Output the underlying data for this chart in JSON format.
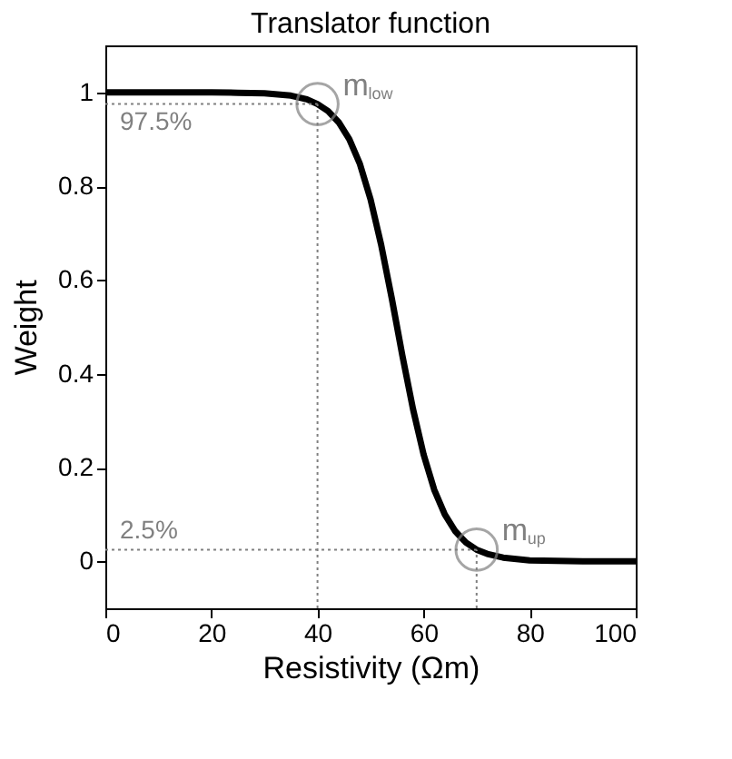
{
  "chart_data": {
    "type": "line",
    "title": "Translator function",
    "xlabel": "Resistivity (Ωm)",
    "ylabel": "Weight",
    "x": [
      0,
      10,
      20,
      25,
      30,
      35,
      38,
      40,
      42,
      44,
      46,
      48,
      50,
      52,
      54,
      55,
      56,
      58,
      60,
      62,
      64,
      66,
      68,
      70,
      72,
      75,
      80,
      90,
      100
    ],
    "series": [
      {
        "color": "#000000",
        "values": [
          1.0,
          1.0,
          1.0,
          0.999,
          0.998,
          0.993,
          0.985,
          0.975,
          0.96,
          0.936,
          0.9,
          0.847,
          0.772,
          0.675,
          0.561,
          0.5,
          0.439,
          0.325,
          0.228,
          0.153,
          0.1,
          0.064,
          0.04,
          0.025,
          0.016,
          0.008,
          0.002,
          0.0,
          0.0
        ]
      }
    ],
    "xlim": [
      0,
      100
    ],
    "xticks": [
      0,
      20,
      40,
      60,
      80,
      100
    ],
    "ylim": [
      -0.1,
      1.1
    ],
    "yticks": [
      0,
      0.2,
      0.4,
      0.6,
      0.8,
      1
    ],
    "grid": false,
    "marker": "none",
    "line_style": "solid",
    "ref_lines": [
      {
        "axis": "y",
        "value": 0.975,
        "label": "97.5%",
        "color": "#808080",
        "line_style": "dotted"
      },
      {
        "axis": "x",
        "value": 40,
        "color": "#808080",
        "line_style": "dotted"
      },
      {
        "axis": "y",
        "value": 0.025,
        "label": "2.5%",
        "color": "#808080",
        "line_style": "dotted"
      },
      {
        "axis": "x",
        "value": 70,
        "color": "#808080",
        "line_style": "dotted"
      }
    ],
    "annotations": [
      {
        "text": "m$_{low}$",
        "x": 40,
        "y": 0.975
      },
      {
        "text": "m$_{up}$",
        "x": 70,
        "y": 0.025
      }
    ]
  }
}
